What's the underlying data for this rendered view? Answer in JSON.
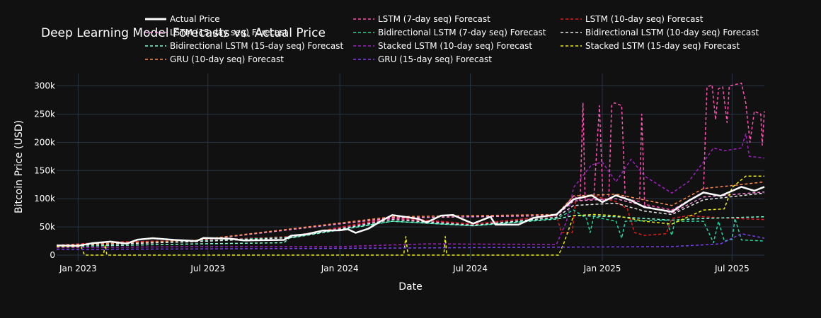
{
  "chart_data": {
    "type": "line",
    "title": "Deep Learning Model Forecasts vs. Actual Price",
    "xlabel": "Date",
    "ylabel": "Bitcoin Price (USD)",
    "xlim": [
      "2022-12-02",
      "2025-08-15"
    ],
    "ylim": [
      -10000,
      322000
    ],
    "x_ticks": [
      {
        "date": "2023-01-01",
        "label": "Jan 2023"
      },
      {
        "date": "2023-07-01",
        "label": "Jul 2023"
      },
      {
        "date": "2024-01-01",
        "label": "Jan 2024"
      },
      {
        "date": "2024-07-01",
        "label": "Jul 2024"
      },
      {
        "date": "2025-01-01",
        "label": "Jan 2025"
      },
      {
        "date": "2025-07-01",
        "label": "Jul 2025"
      }
    ],
    "y_ticks": [
      {
        "value": 0,
        "label": "0"
      },
      {
        "value": 50000,
        "label": "50k"
      },
      {
        "value": 100000,
        "label": "100k"
      },
      {
        "value": 150000,
        "label": "150k"
      },
      {
        "value": 200000,
        "label": "200k"
      },
      {
        "value": 250000,
        "label": "250k"
      },
      {
        "value": 300000,
        "label": "300k"
      }
    ],
    "grid": true,
    "legend_position": "top",
    "series": [
      {
        "name": "Actual Price",
        "color": "#ffffff",
        "dash": "solid",
        "points": [
          [
            "2022-12-02",
            17000
          ],
          [
            "2023-01-01",
            16600
          ],
          [
            "2023-01-20",
            21000
          ],
          [
            "2023-02-15",
            24000
          ],
          [
            "2023-03-10",
            20500
          ],
          [
            "2023-03-25",
            27500
          ],
          [
            "2023-04-15",
            30000
          ],
          [
            "2023-05-15",
            27000
          ],
          [
            "2023-06-15",
            25000
          ],
          [
            "2023-06-25",
            30500
          ],
          [
            "2023-08-01",
            29200
          ],
          [
            "2023-08-20",
            26000
          ],
          [
            "2023-09-15",
            26500
          ],
          [
            "2023-10-15",
            27000
          ],
          [
            "2023-10-25",
            34500
          ],
          [
            "2023-11-15",
            37000
          ],
          [
            "2023-12-08",
            43500
          ],
          [
            "2024-01-01",
            44000
          ],
          [
            "2024-01-12",
            46000
          ],
          [
            "2024-01-23",
            39500
          ],
          [
            "2024-02-10",
            47000
          ],
          [
            "2024-02-28",
            61000
          ],
          [
            "2024-03-14",
            71000
          ],
          [
            "2024-04-05",
            67000
          ],
          [
            "2024-04-20",
            64000
          ],
          [
            "2024-05-01",
            58000
          ],
          [
            "2024-05-21",
            70000
          ],
          [
            "2024-06-07",
            71000
          ],
          [
            "2024-06-25",
            61000
          ],
          [
            "2024-07-05",
            56000
          ],
          [
            "2024-07-29",
            68000
          ],
          [
            "2024-08-05",
            54000
          ],
          [
            "2024-09-06",
            54000
          ],
          [
            "2024-09-27",
            66000
          ],
          [
            "2024-10-29",
            72000
          ],
          [
            "2024-11-12",
            88000
          ],
          [
            "2024-11-22",
            99000
          ],
          [
            "2024-12-17",
            106000
          ],
          [
            "2025-01-01",
            94000
          ],
          [
            "2025-01-20",
            106000
          ],
          [
            "2025-02-10",
            97000
          ],
          [
            "2025-03-01",
            85000
          ],
          [
            "2025-04-08",
            77000
          ],
          [
            "2025-05-01",
            96000
          ],
          [
            "2025-05-22",
            111000
          ],
          [
            "2025-06-15",
            105000
          ],
          [
            "2025-07-14",
            121000
          ],
          [
            "2025-08-01",
            114000
          ],
          [
            "2025-08-15",
            121000
          ]
        ]
      },
      {
        "name": "LSTM (7-day seq) Forecast",
        "color": "#ff4fb0",
        "dash": "4,3",
        "points": [
          [
            "2022-12-02",
            17500
          ],
          [
            "2023-02-15",
            23000
          ],
          [
            "2023-06-15",
            26000
          ],
          [
            "2023-10-25",
            33000
          ],
          [
            "2024-03-14",
            65000
          ],
          [
            "2024-07-05",
            55000
          ],
          [
            "2024-10-29",
            70000
          ],
          [
            "2024-11-22",
            105000
          ],
          [
            "2024-12-01",
            97000
          ],
          [
            "2024-12-05",
            270000
          ],
          [
            "2024-12-08",
            98000
          ],
          [
            "2024-12-20",
            100000
          ],
          [
            "2024-12-28",
            265000
          ],
          [
            "2025-01-02",
            97000
          ],
          [
            "2025-01-10",
            100000
          ],
          [
            "2025-01-14",
            265000
          ],
          [
            "2025-01-18",
            270000
          ],
          [
            "2025-01-28",
            265000
          ],
          [
            "2025-02-02",
            100000
          ],
          [
            "2025-02-22",
            95000
          ],
          [
            "2025-02-25",
            250000
          ],
          [
            "2025-03-01",
            90000
          ],
          [
            "2025-04-08",
            80000
          ],
          [
            "2025-05-22",
            112000
          ],
          [
            "2025-05-27",
            298000
          ],
          [
            "2025-06-03",
            302000
          ],
          [
            "2025-06-08",
            240000
          ],
          [
            "2025-06-12",
            295000
          ],
          [
            "2025-06-18",
            298000
          ],
          [
            "2025-06-24",
            235000
          ],
          [
            "2025-06-27",
            300000
          ],
          [
            "2025-07-14",
            305000
          ],
          [
            "2025-07-20",
            270000
          ],
          [
            "2025-07-26",
            200000
          ],
          [
            "2025-08-01",
            255000
          ],
          [
            "2025-08-10",
            250000
          ],
          [
            "2025-08-12",
            195000
          ],
          [
            "2025-08-15",
            255000
          ]
        ]
      },
      {
        "name": "LSTM (10-day seq) Forecast",
        "color": "#e01b1b",
        "dash": "4,3",
        "points": [
          [
            "2022-12-02",
            16800
          ],
          [
            "2023-02-15",
            23500
          ],
          [
            "2023-06-15",
            25500
          ],
          [
            "2023-10-25",
            33000
          ],
          [
            "2024-03-14",
            67000
          ],
          [
            "2024-07-05",
            55000
          ],
          [
            "2024-10-29",
            70000
          ],
          [
            "2024-11-05",
            40000
          ],
          [
            "2024-11-20",
            40000
          ],
          [
            "2024-11-25",
            100000
          ],
          [
            "2024-12-20",
            105000
          ],
          [
            "2025-01-20",
            95000
          ],
          [
            "2025-02-05",
            82000
          ],
          [
            "2025-02-15",
            40000
          ],
          [
            "2025-03-01",
            35000
          ],
          [
            "2025-03-31",
            38000
          ],
          [
            "2025-04-08",
            65000
          ],
          [
            "2025-05-01",
            70000
          ],
          [
            "2025-06-15",
            66000
          ],
          [
            "2025-08-15",
            63000
          ]
        ]
      },
      {
        "name": "LSTM (15-day seq) Forecast",
        "color": "#ff8ee0",
        "dash": "4,3",
        "points": [
          [
            "2022-12-02",
            17200
          ],
          [
            "2023-06-15",
            26000
          ],
          [
            "2024-03-14",
            66000
          ],
          [
            "2024-10-29",
            70000
          ],
          [
            "2024-11-22",
            96000
          ],
          [
            "2025-01-20",
            100000
          ],
          [
            "2025-04-08",
            75000
          ],
          [
            "2025-05-22",
            103000
          ],
          [
            "2025-08-15",
            112000
          ]
        ]
      },
      {
        "name": "Bidirectional LSTM (7-day seq) Forecast",
        "color": "#1dd6a0",
        "dash": "4,3",
        "points": [
          [
            "2022-12-02",
            17000
          ],
          [
            "2023-06-15",
            25000
          ],
          [
            "2023-10-25",
            32000
          ],
          [
            "2024-03-14",
            60000
          ],
          [
            "2024-07-05",
            52000
          ],
          [
            "2024-10-29",
            65000
          ],
          [
            "2024-11-22",
            80000
          ],
          [
            "2024-12-10",
            65000
          ],
          [
            "2024-12-15",
            40000
          ],
          [
            "2024-12-20",
            68000
          ],
          [
            "2025-01-20",
            60000
          ],
          [
            "2025-01-28",
            30000
          ],
          [
            "2025-02-02",
            60000
          ],
          [
            "2025-03-31",
            62000
          ],
          [
            "2025-04-08",
            35000
          ],
          [
            "2025-04-12",
            60000
          ],
          [
            "2025-05-22",
            60000
          ],
          [
            "2025-06-05",
            22000
          ],
          [
            "2025-06-12",
            60000
          ],
          [
            "2025-06-20",
            25000
          ],
          [
            "2025-07-01",
            28000
          ],
          [
            "2025-07-05",
            65000
          ],
          [
            "2025-07-14",
            27000
          ],
          [
            "2025-08-15",
            25000
          ]
        ]
      },
      {
        "name": "Bidirectional LSTM (10-day seq) Forecast",
        "color": "#e8e8e8",
        "dash": "4,3",
        "points": [
          [
            "2022-12-02",
            16500
          ],
          [
            "2023-06-15",
            24000
          ],
          [
            "2023-10-25",
            31000
          ],
          [
            "2024-03-14",
            63000
          ],
          [
            "2024-07-05",
            53000
          ],
          [
            "2024-10-29",
            67000
          ],
          [
            "2024-11-22",
            88000
          ],
          [
            "2025-01-20",
            92000
          ],
          [
            "2025-03-01",
            78000
          ],
          [
            "2025-04-08",
            72000
          ],
          [
            "2025-05-22",
            98000
          ],
          [
            "2025-08-15",
            110000
          ]
        ]
      },
      {
        "name": "Bidirectional LSTM (15-day seq) Forecast",
        "color": "#7fffd4",
        "dash": "4,3",
        "points": [
          [
            "2022-12-02",
            15000
          ],
          [
            "2023-06-15",
            20000
          ],
          [
            "2023-10-15",
            22000
          ],
          [
            "2023-10-22",
            30000
          ],
          [
            "2024-03-14",
            60000
          ],
          [
            "2024-07-05",
            52000
          ],
          [
            "2024-10-29",
            64000
          ],
          [
            "2024-11-22",
            70000
          ],
          [
            "2025-01-20",
            68000
          ],
          [
            "2025-04-08",
            62000
          ],
          [
            "2025-05-22",
            65000
          ],
          [
            "2025-08-15",
            68000
          ]
        ]
      },
      {
        "name": "Stacked LSTM (10-day seq) Forecast",
        "color": "#a020c0",
        "dash": "4,3",
        "points": [
          [
            "2022-12-02",
            13000
          ],
          [
            "2023-06-15",
            15000
          ],
          [
            "2024-01-01",
            15000
          ],
          [
            "2024-05-01",
            20000
          ],
          [
            "2024-10-29",
            19000
          ],
          [
            "2024-11-12",
            60000
          ],
          [
            "2024-11-22",
            120000
          ],
          [
            "2024-12-17",
            160000
          ],
          [
            "2025-01-01",
            165000
          ],
          [
            "2025-01-20",
            130000
          ],
          [
            "2025-02-10",
            170000
          ],
          [
            "2025-03-01",
            140000
          ],
          [
            "2025-04-08",
            110000
          ],
          [
            "2025-05-01",
            130000
          ],
          [
            "2025-05-22",
            165000
          ],
          [
            "2025-06-05",
            190000
          ],
          [
            "2025-06-20",
            185000
          ],
          [
            "2025-07-14",
            190000
          ],
          [
            "2025-07-20",
            215000
          ],
          [
            "2025-07-25",
            175000
          ],
          [
            "2025-08-15",
            172000
          ]
        ]
      },
      {
        "name": "Stacked LSTM (15-day seq) Forecast",
        "color": "#f0f000",
        "dash": "4,3",
        "points": [
          [
            "2022-12-02",
            15000
          ],
          [
            "2023-01-05",
            15000
          ],
          [
            "2023-01-10",
            0
          ],
          [
            "2023-02-05",
            0
          ],
          [
            "2023-02-08",
            18000
          ],
          [
            "2023-02-10",
            0
          ],
          [
            "2024-03-30",
            0
          ],
          [
            "2024-04-02",
            33000
          ],
          [
            "2024-04-05",
            0
          ],
          [
            "2024-05-25",
            0
          ],
          [
            "2024-05-27",
            33000
          ],
          [
            "2024-05-29",
            0
          ],
          [
            "2024-11-01",
            0
          ],
          [
            "2024-11-08",
            20000
          ],
          [
            "2024-11-22",
            70000
          ],
          [
            "2024-12-20",
            72000
          ],
          [
            "2025-01-20",
            70000
          ],
          [
            "2025-03-01",
            60000
          ],
          [
            "2025-04-08",
            55000
          ],
          [
            "2025-05-22",
            80000
          ],
          [
            "2025-06-20",
            82000
          ],
          [
            "2025-07-01",
            120000
          ],
          [
            "2025-07-20",
            140000
          ],
          [
            "2025-08-15",
            140000
          ]
        ]
      },
      {
        "name": "GRU (10-day seq) Forecast",
        "color": "#ff8c4a",
        "dash": "4,3",
        "points": [
          [
            "2022-12-02",
            17500
          ],
          [
            "2023-06-15",
            26500
          ],
          [
            "2024-03-14",
            68000
          ],
          [
            "2024-10-29",
            72000
          ],
          [
            "2024-11-22",
            105000
          ],
          [
            "2025-01-20",
            108000
          ],
          [
            "2025-04-08",
            88000
          ],
          [
            "2025-05-22",
            118000
          ],
          [
            "2025-07-14",
            125000
          ],
          [
            "2025-08-15",
            130000
          ]
        ]
      },
      {
        "name": "GRU (15-day seq) Forecast",
        "color": "#7a3ff0",
        "dash": "4,3",
        "points": [
          [
            "2022-12-02",
            10000
          ],
          [
            "2023-06-15",
            11000
          ],
          [
            "2024-01-01",
            12000
          ],
          [
            "2024-10-29",
            14000
          ],
          [
            "2025-04-08",
            15000
          ],
          [
            "2025-06-15",
            20000
          ],
          [
            "2025-07-14",
            38000
          ],
          [
            "2025-08-15",
            30000
          ]
        ]
      }
    ]
  }
}
